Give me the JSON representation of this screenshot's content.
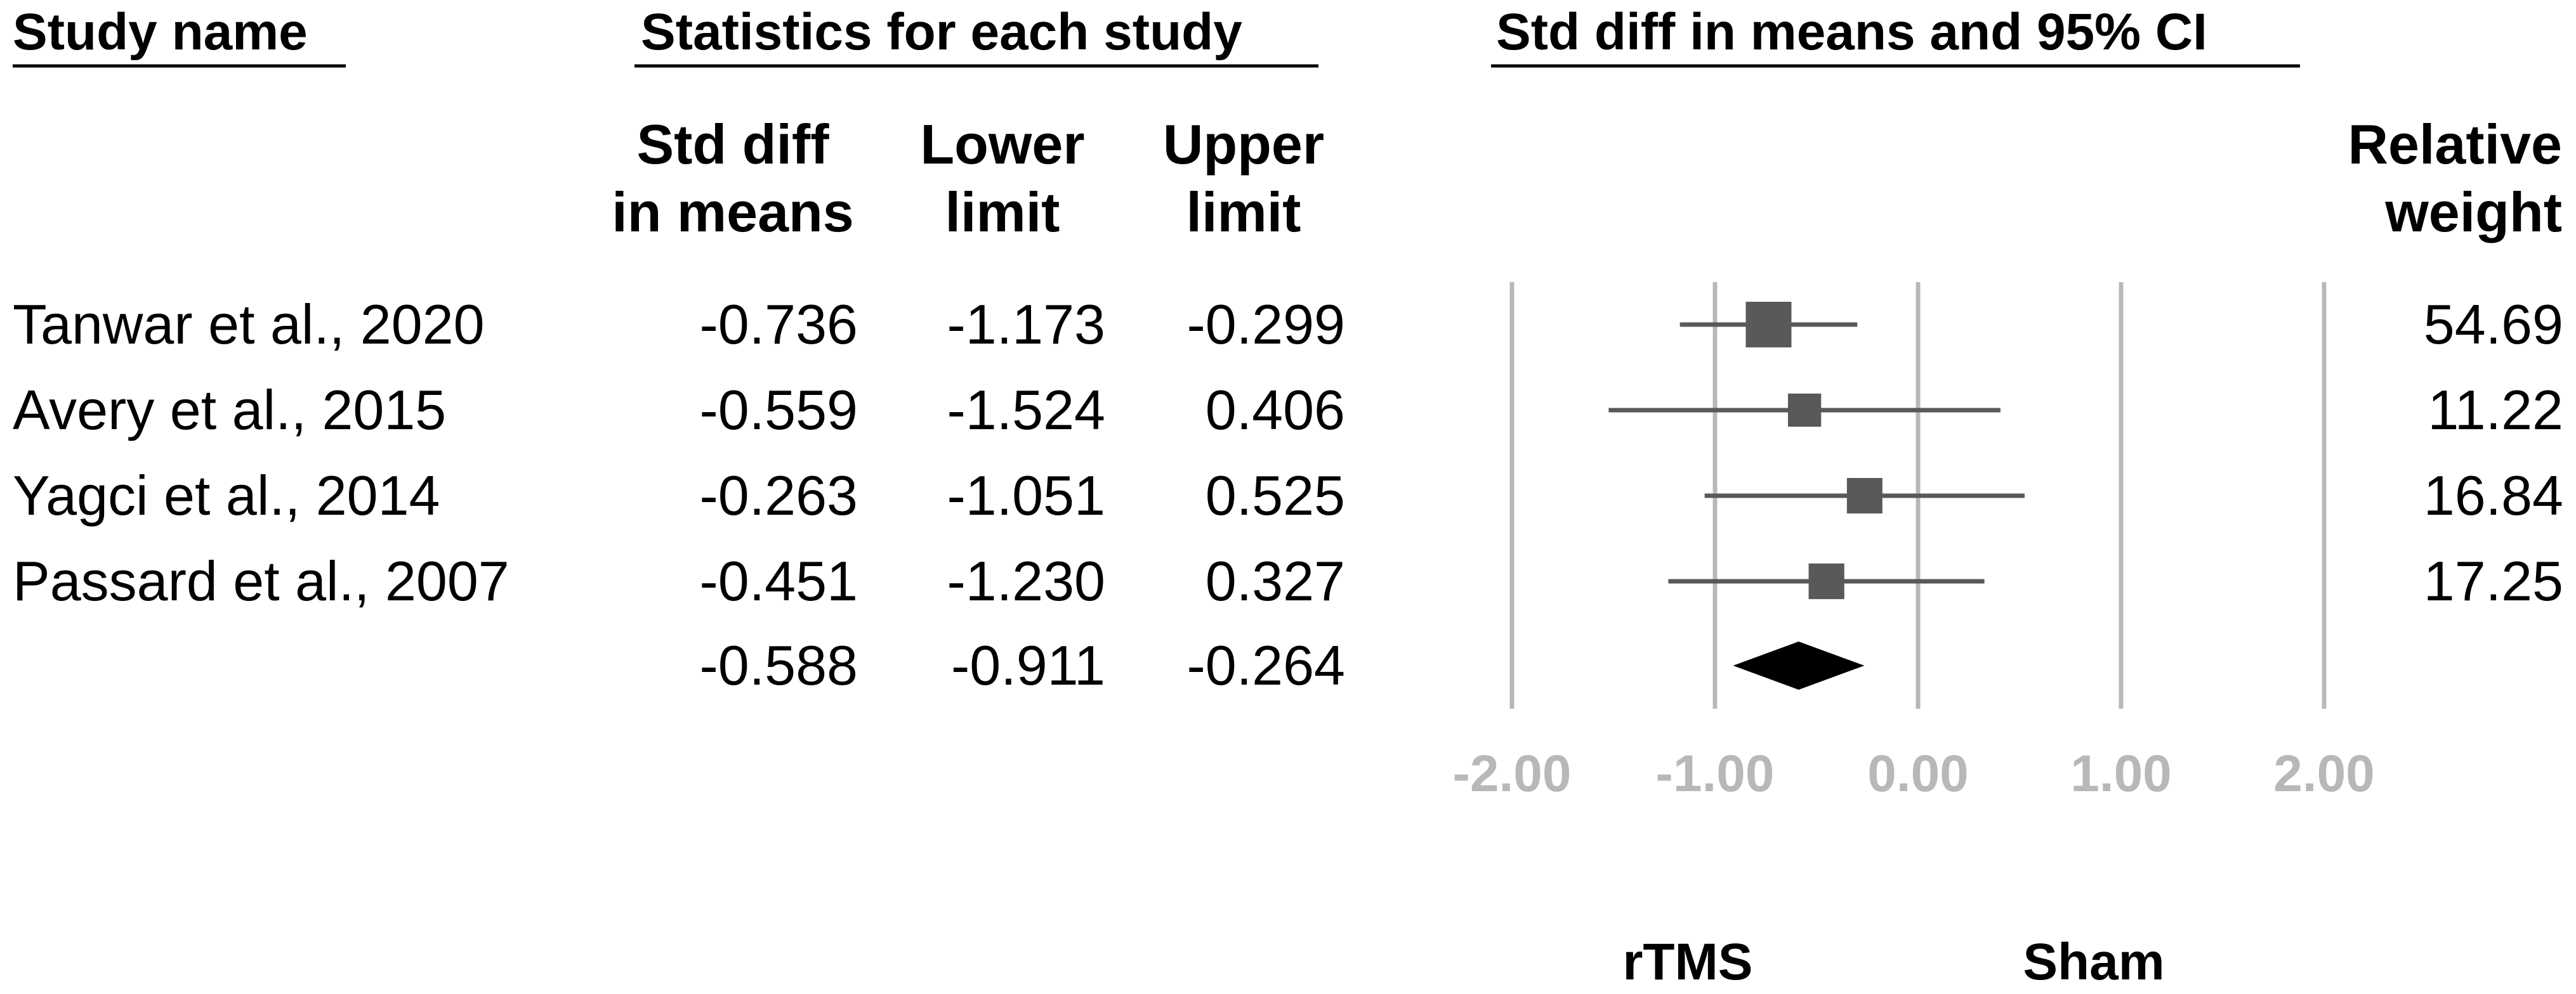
{
  "headers": {
    "study_name": "Study name",
    "statistics": "Statistics for each study",
    "plot": "Std diff in means and 95% CI"
  },
  "columns": {
    "std_diff": [
      "Std diff",
      "in means"
    ],
    "lower": [
      "Lower",
      "limit"
    ],
    "upper": [
      "Upper",
      "limit"
    ],
    "weight": [
      "Relative",
      "weight"
    ]
  },
  "favours": {
    "left": "rTMS",
    "right": "Sham"
  },
  "chart_data": {
    "type": "forest",
    "title": "Std diff in means and 95% CI",
    "xlim": [
      -2,
      2
    ],
    "xticks": [
      -2,
      -1,
      0,
      1,
      2
    ],
    "tick_labels": [
      "-2.00",
      "-1.00",
      "0.00",
      "1.00",
      "2.00"
    ],
    "grid": true,
    "studies": [
      {
        "name": "Tanwar et al., 2020",
        "std_diff": -0.736,
        "lower": -1.173,
        "upper": -0.299,
        "weight": 54.69,
        "std_diff_text": "-0.736",
        "lower_text": "-1.173",
        "upper_text": "-0.299",
        "weight_text": "54.69"
      },
      {
        "name": "Avery et al., 2015",
        "std_diff": -0.559,
        "lower": -1.524,
        "upper": 0.406,
        "weight": 11.22,
        "std_diff_text": "-0.559",
        "lower_text": "-1.524",
        "upper_text": "0.406",
        "weight_text": "11.22"
      },
      {
        "name": "Yagci et al., 2014",
        "std_diff": -0.263,
        "lower": -1.051,
        "upper": 0.525,
        "weight": 16.84,
        "std_diff_text": "-0.263",
        "lower_text": "-1.051",
        "upper_text": "0.525",
        "weight_text": "16.84"
      },
      {
        "name": "Passard et al., 2007",
        "std_diff": -0.451,
        "lower": -1.23,
        "upper": 0.327,
        "weight": 17.25,
        "std_diff_text": "-0.451",
        "lower_text": "-1.230",
        "upper_text": "0.327",
        "weight_text": "17.25"
      }
    ],
    "summary": {
      "std_diff": -0.588,
      "lower": -0.911,
      "upper": -0.264,
      "std_diff_text": "-0.588",
      "lower_text": "-0.911",
      "upper_text": "-0.264"
    }
  },
  "colors": {
    "gridline": "#b8b8b8",
    "marker": "#595959",
    "diamond": "#000000",
    "tick_label": "#b8b8b8"
  }
}
